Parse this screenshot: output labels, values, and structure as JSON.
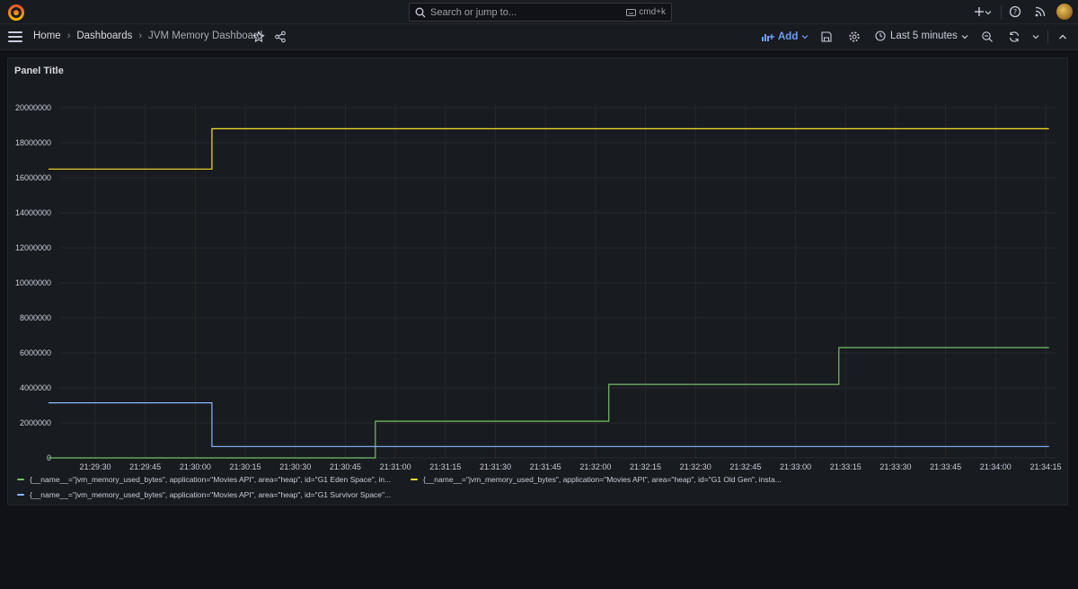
{
  "search": {
    "placeholder": "Search or jump to...",
    "shortcut": "cmd+k"
  },
  "breadcrumb": {
    "home": "Home",
    "dashboards": "Dashboards",
    "current": "JVM Memory Dashboard"
  },
  "toolbar": {
    "add_label": "Add",
    "time_range": "Last 5 minutes"
  },
  "colors": {
    "accent": "#6e9fff",
    "eden": "#73bf69",
    "old_gen": "#fade2a",
    "survivor": "#8ab8ff"
  },
  "panel": {
    "title": "Panel Title"
  },
  "chart_data": {
    "type": "line",
    "y_ticks": [
      "20000000",
      "18000000",
      "16000000",
      "14000000",
      "12000000",
      "10000000",
      "8000000",
      "6000000",
      "4000000",
      "2000000",
      "0"
    ],
    "x_ticks": [
      "21:29:30",
      "21:29:45",
      "21:30:00",
      "21:30:15",
      "21:30:30",
      "21:30:45",
      "21:31:00",
      "21:31:15",
      "21:31:30",
      "21:31:45",
      "21:32:00",
      "21:32:15",
      "21:32:30",
      "21:32:45",
      "21:33:00",
      "21:33:15",
      "21:33:30",
      "21:33:45",
      "21:34:00",
      "21:34:15"
    ],
    "ylim": [
      0,
      20000000
    ],
    "grid": true,
    "legend_position": "bottom",
    "series": [
      {
        "name": "{__name__=\"jvm_memory_used_bytes\", application=\"Movies API\", area=\"heap\", id=\"G1 Eden Space\", in...",
        "color": "#73bf69",
        "points": [
          [
            "21:29:16",
            0
          ],
          [
            "21:30:54",
            0
          ],
          [
            "21:30:54",
            2100000
          ],
          [
            "21:32:04",
            2100000
          ],
          [
            "21:32:04",
            4200000
          ],
          [
            "21:33:13",
            4200000
          ],
          [
            "21:33:13",
            6300000
          ],
          [
            "21:34:16",
            6300000
          ]
        ]
      },
      {
        "name": "{__name__=\"jvm_memory_used_bytes\", application=\"Movies API\", area=\"heap\", id=\"G1 Old Gen\", insta...",
        "color": "#fade2a",
        "points": [
          [
            "21:29:16",
            16500000
          ],
          [
            "21:30:05",
            16500000
          ],
          [
            "21:30:05",
            18800000
          ],
          [
            "21:34:16",
            18800000
          ]
        ]
      },
      {
        "name": "{__name__=\"jvm_memory_used_bytes\", application=\"Movies API\", area=\"heap\", id=\"G1 Survivor Space\"...",
        "color": "#8ab8ff",
        "points": [
          [
            "21:29:16",
            3150000
          ],
          [
            "21:30:05",
            3150000
          ],
          [
            "21:30:05",
            650000
          ],
          [
            "21:34:16",
            650000
          ]
        ]
      }
    ]
  }
}
